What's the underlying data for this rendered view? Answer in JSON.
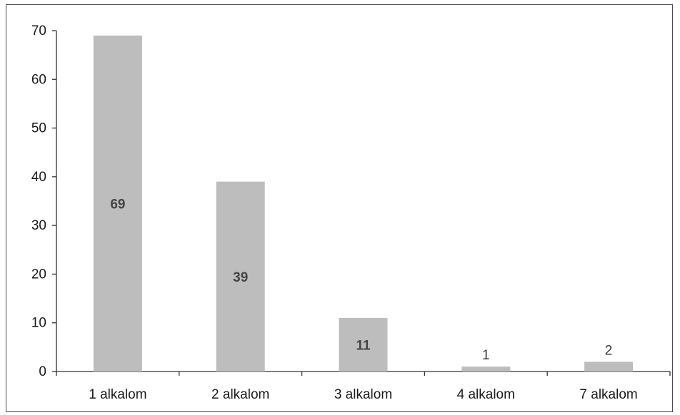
{
  "chart_data": {
    "type": "bar",
    "categories": [
      "1 alkalom",
      "2 alkalom",
      "3 alkalom",
      "4 alkalom",
      "7 alkalom"
    ],
    "values": [
      69,
      39,
      11,
      1,
      2
    ],
    "data_labels": [
      "69",
      "39",
      "11",
      "1",
      "2"
    ],
    "title": "",
    "xlabel": "",
    "ylabel": "",
    "ylim": [
      0,
      70
    ],
    "yticks": [
      0,
      10,
      20,
      30,
      40,
      50,
      60,
      70
    ],
    "grid": false,
    "legend": "none",
    "bar_color": "#bdbdbd",
    "axis_color": "#333333"
  }
}
